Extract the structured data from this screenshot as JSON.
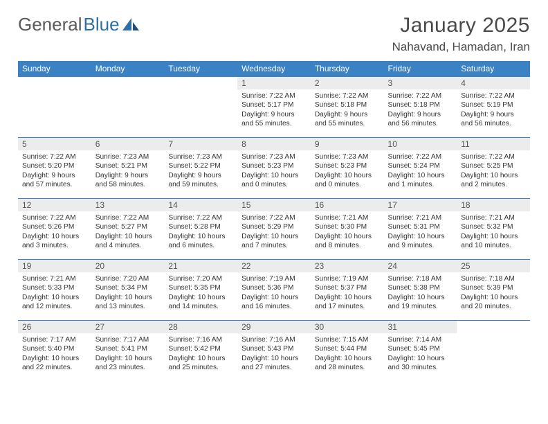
{
  "brand": {
    "part1": "General",
    "part2": "Blue"
  },
  "title": "January 2025",
  "location": "Nahavand, Hamadan, Iran",
  "colors": {
    "header_bg": "#3b82c4",
    "header_text": "#ffffff",
    "daynum_bg": "#ececec",
    "row_border": "#3b82c4",
    "logo_gray": "#5a5a5a",
    "logo_blue": "#2f6fa7",
    "body_text": "#333333",
    "title_text": "#4a4a4a"
  },
  "day_names": [
    "Sunday",
    "Monday",
    "Tuesday",
    "Wednesday",
    "Thursday",
    "Friday",
    "Saturday"
  ],
  "first_weekday_index": 3,
  "days": [
    {
      "n": 1,
      "sunrise": "7:22 AM",
      "sunset": "5:17 PM",
      "dl_h": 9,
      "dl_m": 55
    },
    {
      "n": 2,
      "sunrise": "7:22 AM",
      "sunset": "5:18 PM",
      "dl_h": 9,
      "dl_m": 55
    },
    {
      "n": 3,
      "sunrise": "7:22 AM",
      "sunset": "5:18 PM",
      "dl_h": 9,
      "dl_m": 56
    },
    {
      "n": 4,
      "sunrise": "7:22 AM",
      "sunset": "5:19 PM",
      "dl_h": 9,
      "dl_m": 56
    },
    {
      "n": 5,
      "sunrise": "7:22 AM",
      "sunset": "5:20 PM",
      "dl_h": 9,
      "dl_m": 57
    },
    {
      "n": 6,
      "sunrise": "7:23 AM",
      "sunset": "5:21 PM",
      "dl_h": 9,
      "dl_m": 58
    },
    {
      "n": 7,
      "sunrise": "7:23 AM",
      "sunset": "5:22 PM",
      "dl_h": 9,
      "dl_m": 59
    },
    {
      "n": 8,
      "sunrise": "7:23 AM",
      "sunset": "5:23 PM",
      "dl_h": 10,
      "dl_m": 0
    },
    {
      "n": 9,
      "sunrise": "7:23 AM",
      "sunset": "5:23 PM",
      "dl_h": 10,
      "dl_m": 0
    },
    {
      "n": 10,
      "sunrise": "7:22 AM",
      "sunset": "5:24 PM",
      "dl_h": 10,
      "dl_m": 1
    },
    {
      "n": 11,
      "sunrise": "7:22 AM",
      "sunset": "5:25 PM",
      "dl_h": 10,
      "dl_m": 2
    },
    {
      "n": 12,
      "sunrise": "7:22 AM",
      "sunset": "5:26 PM",
      "dl_h": 10,
      "dl_m": 3
    },
    {
      "n": 13,
      "sunrise": "7:22 AM",
      "sunset": "5:27 PM",
      "dl_h": 10,
      "dl_m": 4
    },
    {
      "n": 14,
      "sunrise": "7:22 AM",
      "sunset": "5:28 PM",
      "dl_h": 10,
      "dl_m": 6
    },
    {
      "n": 15,
      "sunrise": "7:22 AM",
      "sunset": "5:29 PM",
      "dl_h": 10,
      "dl_m": 7
    },
    {
      "n": 16,
      "sunrise": "7:21 AM",
      "sunset": "5:30 PM",
      "dl_h": 10,
      "dl_m": 8
    },
    {
      "n": 17,
      "sunrise": "7:21 AM",
      "sunset": "5:31 PM",
      "dl_h": 10,
      "dl_m": 9
    },
    {
      "n": 18,
      "sunrise": "7:21 AM",
      "sunset": "5:32 PM",
      "dl_h": 10,
      "dl_m": 10
    },
    {
      "n": 19,
      "sunrise": "7:21 AM",
      "sunset": "5:33 PM",
      "dl_h": 10,
      "dl_m": 12
    },
    {
      "n": 20,
      "sunrise": "7:20 AM",
      "sunset": "5:34 PM",
      "dl_h": 10,
      "dl_m": 13
    },
    {
      "n": 21,
      "sunrise": "7:20 AM",
      "sunset": "5:35 PM",
      "dl_h": 10,
      "dl_m": 14
    },
    {
      "n": 22,
      "sunrise": "7:19 AM",
      "sunset": "5:36 PM",
      "dl_h": 10,
      "dl_m": 16
    },
    {
      "n": 23,
      "sunrise": "7:19 AM",
      "sunset": "5:37 PM",
      "dl_h": 10,
      "dl_m": 17
    },
    {
      "n": 24,
      "sunrise": "7:18 AM",
      "sunset": "5:38 PM",
      "dl_h": 10,
      "dl_m": 19
    },
    {
      "n": 25,
      "sunrise": "7:18 AM",
      "sunset": "5:39 PM",
      "dl_h": 10,
      "dl_m": 20
    },
    {
      "n": 26,
      "sunrise": "7:17 AM",
      "sunset": "5:40 PM",
      "dl_h": 10,
      "dl_m": 22
    },
    {
      "n": 27,
      "sunrise": "7:17 AM",
      "sunset": "5:41 PM",
      "dl_h": 10,
      "dl_m": 23
    },
    {
      "n": 28,
      "sunrise": "7:16 AM",
      "sunset": "5:42 PM",
      "dl_h": 10,
      "dl_m": 25
    },
    {
      "n": 29,
      "sunrise": "7:16 AM",
      "sunset": "5:43 PM",
      "dl_h": 10,
      "dl_m": 27
    },
    {
      "n": 30,
      "sunrise": "7:15 AM",
      "sunset": "5:44 PM",
      "dl_h": 10,
      "dl_m": 28
    },
    {
      "n": 31,
      "sunrise": "7:14 AM",
      "sunset": "5:45 PM",
      "dl_h": 10,
      "dl_m": 30
    }
  ]
}
